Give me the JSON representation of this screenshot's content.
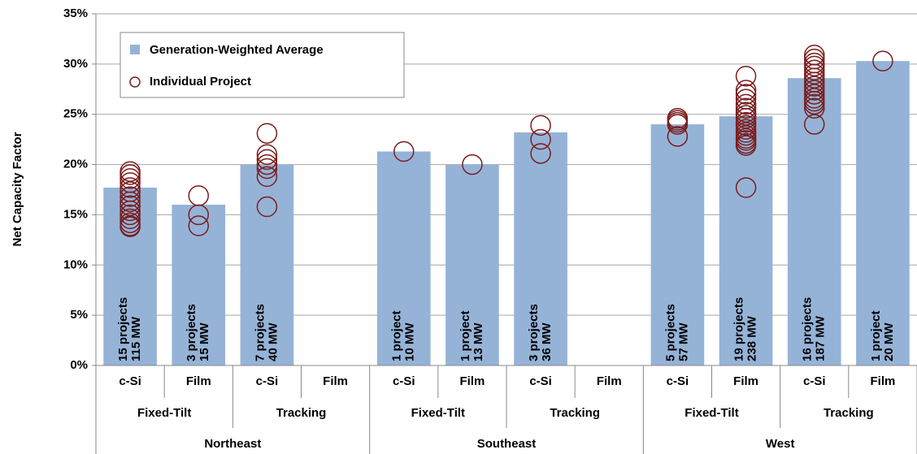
{
  "chart_data": {
    "type": "bar_scatter",
    "ylabel": "Net Capacity Factor",
    "ylim": [
      0,
      35
    ],
    "yticks": [
      {
        "value": 0,
        "label": "0%"
      },
      {
        "value": 5,
        "label": "5%"
      },
      {
        "value": 10,
        "label": "10%"
      },
      {
        "value": 15,
        "label": "15%"
      },
      {
        "value": 20,
        "label": "20%"
      },
      {
        "value": 25,
        "label": "25%"
      },
      {
        "value": 30,
        "label": "30%"
      },
      {
        "value": 35,
        "label": "35%"
      }
    ],
    "grid": true,
    "categories": [
      "c-Si",
      "Film",
      "c-Si",
      "Film",
      "c-Si",
      "Film",
      "c-Si",
      "Film",
      "c-Si",
      "Film",
      "c-Si",
      "Film"
    ],
    "subgroups": [
      "Fixed-Tilt",
      "Tracking",
      "Fixed-Tilt",
      "Tracking",
      "Fixed-Tilt",
      "Tracking"
    ],
    "groups": [
      "Northeast",
      "Southeast",
      "West"
    ],
    "series": [
      {
        "name": "Generation-Weighted Average",
        "color": "#95b3d7",
        "values": [
          17.7,
          16.0,
          20.0,
          null,
          21.3,
          20.0,
          23.2,
          null,
          24.0,
          24.8,
          28.6,
          30.3
        ],
        "value_labels": [
          [
            "15 projects",
            "115 MW"
          ],
          [
            "3 projects",
            "15 MW"
          ],
          [
            "7 projects",
            "40 MW"
          ],
          null,
          [
            "1 project",
            "10 MW"
          ],
          [
            "1 project",
            "13 MW"
          ],
          [
            "3 projects",
            "36 MW"
          ],
          null,
          [
            "5 projects",
            "57 MW"
          ],
          [
            "19 projects",
            "238 MW"
          ],
          [
            "16 projects",
            "187 MW"
          ],
          [
            "1 project",
            "20 MW"
          ]
        ]
      },
      {
        "name": "Individual Project",
        "color": "#7b1e1e",
        "values": [
          [
            19.3,
            19.0,
            18.6,
            18.2,
            17.7,
            17.3,
            16.8,
            16.3,
            15.9,
            15.4,
            15.0,
            14.6,
            14.2,
            13.9,
            13.8
          ],
          [
            16.9,
            15.0,
            13.9
          ],
          [
            23.1,
            21.0,
            20.5,
            20.0,
            19.6,
            18.8,
            15.8
          ],
          [],
          [
            21.3
          ],
          [
            20.0
          ],
          [
            23.9,
            22.5,
            21.1
          ],
          [],
          [
            24.6,
            24.4,
            24.2,
            24.0,
            22.8
          ],
          [
            28.8,
            27.4,
            27.0,
            26.5,
            26.0,
            25.6,
            25.2,
            24.9,
            24.6,
            24.2,
            23.9,
            23.5,
            23.2,
            22.9,
            22.6,
            22.4,
            22.1,
            21.9,
            17.7
          ],
          [
            30.9,
            30.5,
            30.1,
            29.8,
            29.4,
            29.0,
            28.6,
            28.2,
            27.8,
            27.4,
            27.0,
            26.6,
            26.3,
            26.0,
            25.6,
            24.0
          ],
          [
            30.3
          ]
        ]
      }
    ]
  }
}
